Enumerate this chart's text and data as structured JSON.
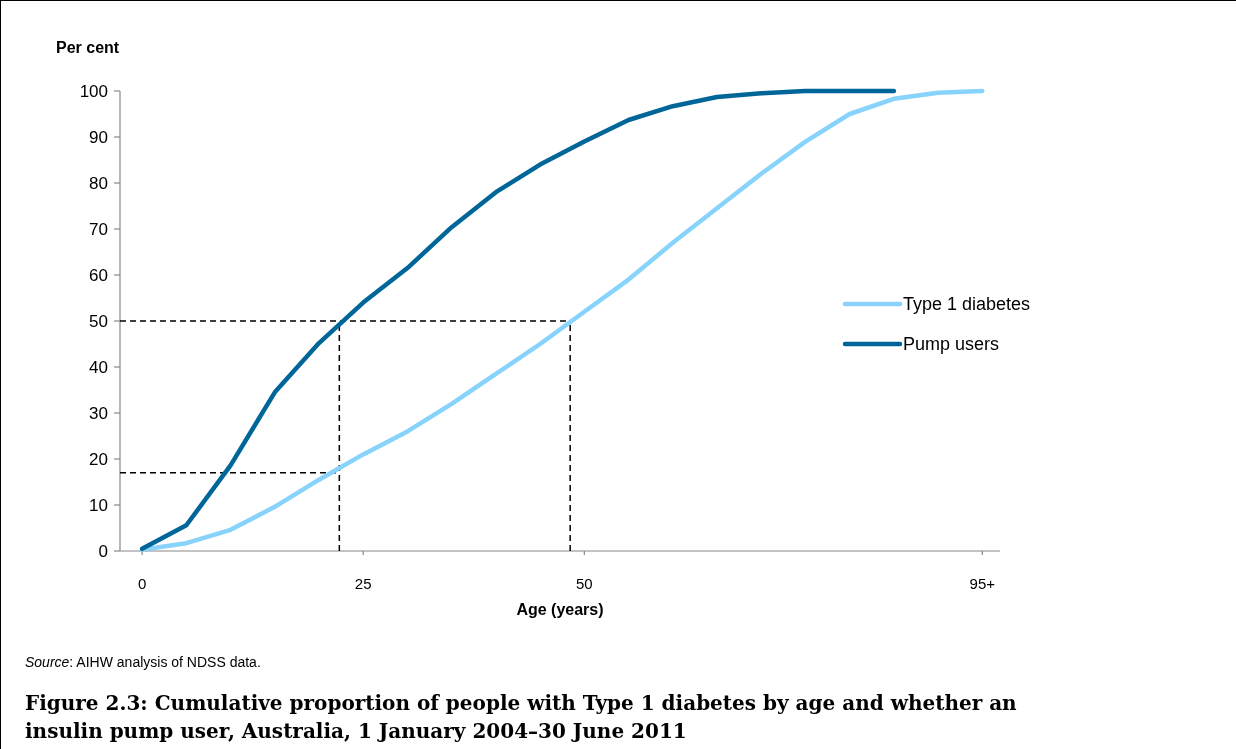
{
  "chart_data": {
    "type": "line",
    "ylabel": "Per cent",
    "xlabel": "Age (years)",
    "title": "Figure 2.3: Cumulative proportion of people with Type 1 diabetes by age and whether an insulin pump user, Australia, 1 January 2004–30 June 2011",
    "annotations": [
      "Source: AIHW analysis of NDSS data."
    ],
    "xlim": [
      -2.5,
      97
    ],
    "xticks": [
      0,
      25,
      50,
      {
        "value": 95,
        "label": "95+"
      }
    ],
    "ylim": [
      0,
      100
    ],
    "yticks": [
      0,
      10,
      20,
      30,
      40,
      50,
      60,
      70,
      80,
      90,
      100
    ],
    "legend": "right",
    "grid": false,
    "marker": "none",
    "line_style": "solid",
    "series": [
      {
        "name": "Type 1 diabetes",
        "color": "#87d3fb",
        "x": [
          0,
          5,
          10,
          15,
          20,
          25,
          30,
          35,
          40,
          45,
          50,
          55,
          60,
          65,
          70,
          75,
          80,
          85,
          90,
          95
        ],
        "values": [
          0.3,
          1.7,
          4.6,
          9.6,
          15.5,
          21,
          26,
          32,
          38.5,
          45,
          52,
          59,
          67,
          74.5,
          82,
          89,
          95,
          98.3,
          99.6,
          100
        ]
      },
      {
        "name": "Pump users",
        "color": "#006699",
        "x": [
          0,
          5,
          10,
          15,
          20,
          25,
          30,
          35,
          40,
          45,
          50,
          55,
          60,
          65,
          70,
          75,
          80,
          85
        ],
        "values": [
          0.5,
          5.6,
          18.6,
          34.5,
          45.2,
          54,
          61.5,
          70.4,
          78,
          84,
          89,
          93.7,
          96.7,
          98.7,
          99.5,
          100,
          100,
          100
        ]
      }
    ],
    "ref_lines": [
      {
        "axis": "x",
        "value": 22.3,
        "color": "#000000",
        "line_style": "dashed"
      },
      {
        "axis": "x",
        "value": 48.4,
        "color": "#000000",
        "line_style": "dashed"
      },
      {
        "axis": "y",
        "value": 50,
        "color": "#000000",
        "line_style": "dashed"
      },
      {
        "axis": "y",
        "value": 17,
        "color": "#000000",
        "line_style": "dashed"
      }
    ]
  }
}
